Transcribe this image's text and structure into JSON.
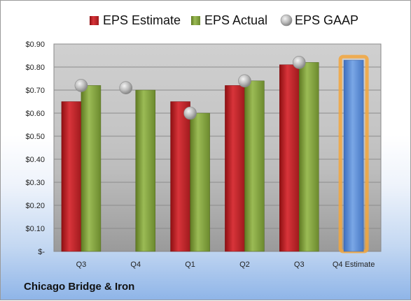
{
  "chart_data": {
    "type": "bar",
    "title": "Chicago Bridge & Iron",
    "categories": [
      "Q3",
      "Q4",
      "Q1",
      "Q2",
      "Q3",
      "Q4 Estimate"
    ],
    "series": [
      {
        "name": "EPS Estimate",
        "values": [
          0.65,
          null,
          0.65,
          0.72,
          0.81,
          null
        ],
        "color": "#c0282b"
      },
      {
        "name": "EPS Actual",
        "values": [
          0.72,
          0.7,
          0.6,
          0.74,
          0.82,
          null
        ],
        "color": "#7f9b3c"
      },
      {
        "name": "EPS GAAP",
        "values": [
          0.72,
          0.71,
          0.6,
          0.74,
          0.82,
          null
        ],
        "color": "#a9a9a9"
      }
    ],
    "next_estimate": {
      "category": "Q4 Estimate",
      "value": 0.83,
      "color": "#5c8fd6"
    },
    "y_ticks": [
      "$-",
      "$0.10",
      "$0.20",
      "$0.30",
      "$0.40",
      "$0.50",
      "$0.60",
      "$0.70",
      "$0.80",
      "$0.90"
    ],
    "ylim": [
      0,
      0.9
    ],
    "grid": true,
    "legend_position": "top"
  }
}
